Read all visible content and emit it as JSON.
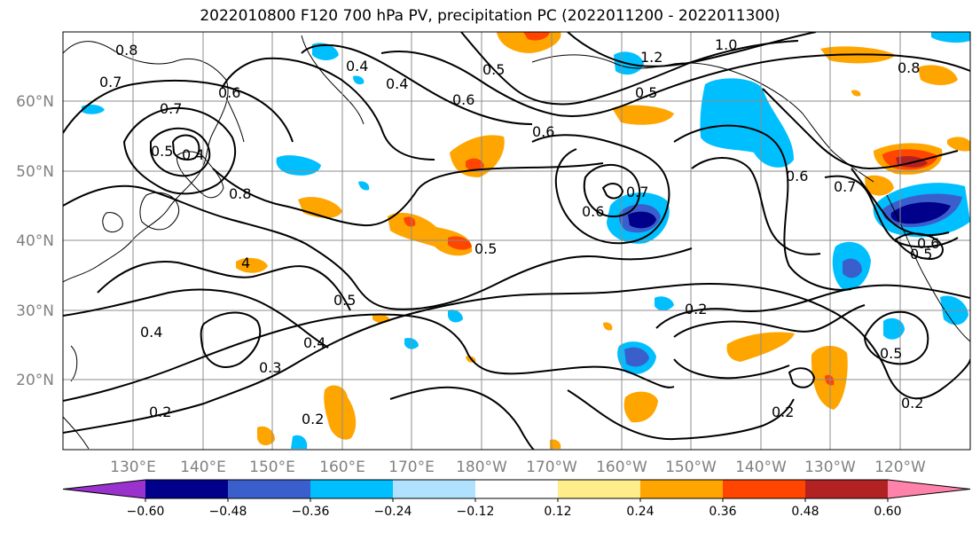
{
  "title": "2022010800 F120 700 hPa PV, precipitation PC (2022011200 - 2022011300)",
  "lat_labels": [
    "60°N",
    "50°N",
    "40°N",
    "30°N",
    "20°N"
  ],
  "lon_labels": [
    "130°E",
    "140°E",
    "150°E",
    "160°E",
    "170°E",
    "180°W",
    "170°W",
    "160°W",
    "150°W",
    "140°W",
    "130°W",
    "120°W"
  ],
  "contour_labels": [
    {
      "text": "0.8"
    },
    {
      "text": "0.7"
    },
    {
      "text": "0.7"
    },
    {
      "text": "0.6"
    },
    {
      "text": "0.5"
    },
    {
      "text": "0.4"
    },
    {
      "text": "0.8"
    },
    {
      "text": "0.4"
    },
    {
      "text": "0.5"
    },
    {
      "text": "0.4"
    },
    {
      "text": "0.6"
    },
    {
      "text": "0.5"
    },
    {
      "text": "1.2"
    },
    {
      "text": "1.0"
    },
    {
      "text": "0.6"
    },
    {
      "text": "0.5"
    },
    {
      "text": "0.8"
    },
    {
      "text": "0.6"
    },
    {
      "text": "0.7"
    },
    {
      "text": "0.6"
    },
    {
      "text": "0.7"
    },
    {
      "text": "0.5"
    },
    {
      "text": "0.5"
    },
    {
      "text": "0.4"
    },
    {
      "text": "0.4"
    },
    {
      "text": "0.3"
    },
    {
      "text": "0.2"
    },
    {
      "text": "0.2"
    },
    {
      "text": "0.2"
    },
    {
      "text": "0.5"
    },
    {
      "text": "0.2"
    },
    {
      "text": "0.2"
    },
    {
      "text": "0.6"
    },
    {
      "text": "0.5"
    },
    {
      "text": "4"
    }
  ],
  "colorbar": {
    "colors": [
      "#9a32cd",
      "#00008b",
      "#3a5fcd",
      "#00bfff",
      "#b0e2ff",
      "#ffffff",
      "#ffec8b",
      "#ffa500",
      "#ff4500",
      "#b22222",
      "#ff82ab"
    ],
    "ticks": [
      "−0.60",
      "−0.48",
      "−0.36",
      "−0.24",
      "−0.12",
      "0.12",
      "0.24",
      "0.36",
      "0.48",
      "0.60"
    ]
  }
}
